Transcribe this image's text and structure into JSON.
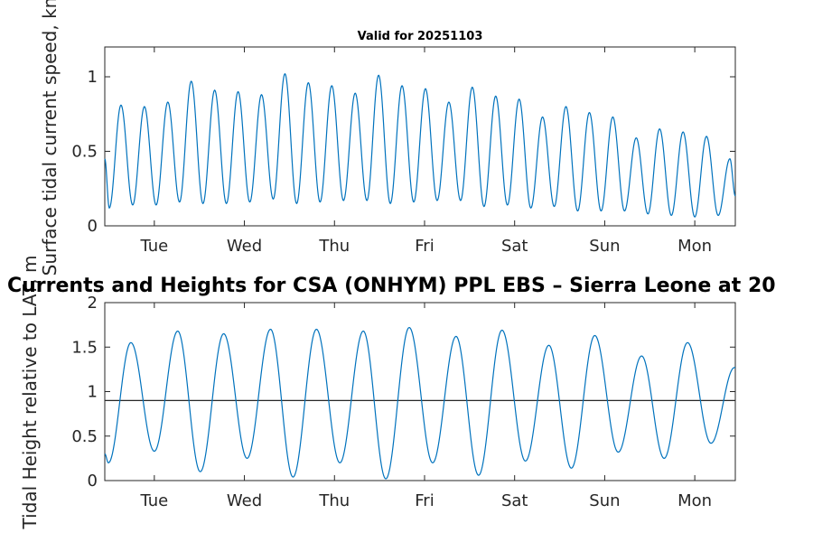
{
  "figure_title": "Currents and Heights for CSA (ONHYM) PPL EBS  – Sierra Leone at 20",
  "chart_data": [
    {
      "type": "line",
      "title": "Valid for 20251103",
      "ylabel": "Surface tidal current speed, kn",
      "ylabel_visible": "Surface tidal current speed, kn",
      "xlim": [
        0,
        7
      ],
      "ylim": [
        0,
        1.2
      ],
      "yticks": [
        0,
        0.5,
        1
      ],
      "ytick_labels": [
        "0",
        "0.5",
        "1"
      ],
      "xtick_positions": [
        0.55,
        1.55,
        2.55,
        3.55,
        4.55,
        5.55,
        6.55
      ],
      "xtick_labels": [
        "Tue",
        "Wed",
        "Thu",
        "Fri",
        "Sat",
        "Sun",
        "Mon"
      ],
      "color": "#0072BD",
      "extrema_t": [
        0,
        0.05,
        0.18,
        0.31,
        0.44,
        0.57,
        0.7,
        0.83,
        0.96,
        1.09,
        1.22,
        1.35,
        1.48,
        1.61,
        1.74,
        1.87,
        2.0,
        2.13,
        2.26,
        2.39,
        2.52,
        2.65,
        2.78,
        2.91,
        3.04,
        3.17,
        3.3,
        3.43,
        3.56,
        3.69,
        3.82,
        3.95,
        4.08,
        4.21,
        4.34,
        4.47,
        4.6,
        4.73,
        4.86,
        4.99,
        5.12,
        5.25,
        5.38,
        5.51,
        5.64,
        5.77,
        5.9,
        6.03,
        6.16,
        6.29,
        6.42,
        6.55,
        6.68,
        6.81,
        6.94,
        7.0
      ],
      "extrema_v": [
        0.45,
        0.12,
        0.81,
        0.14,
        0.8,
        0.14,
        0.83,
        0.16,
        0.97,
        0.15,
        0.91,
        0.15,
        0.9,
        0.16,
        0.88,
        0.18,
        1.02,
        0.15,
        0.96,
        0.16,
        0.94,
        0.17,
        0.89,
        0.17,
        1.01,
        0.15,
        0.94,
        0.16,
        0.92,
        0.17,
        0.83,
        0.17,
        0.93,
        0.13,
        0.87,
        0.14,
        0.85,
        0.12,
        0.73,
        0.13,
        0.8,
        0.1,
        0.76,
        0.1,
        0.73,
        0.1,
        0.59,
        0.08,
        0.65,
        0.07,
        0.63,
        0.06,
        0.6,
        0.07,
        0.45,
        0.2
      ]
    },
    {
      "type": "line",
      "title": "",
      "ylabel": "Tidal Height relative to LAT, m",
      "ylabel_visible": "Tidal Height relative to LAT, m",
      "xlim": [
        0,
        7
      ],
      "ylim": [
        0,
        2
      ],
      "yticks": [
        0,
        0.5,
        1,
        1.5,
        2
      ],
      "ytick_labels": [
        "0",
        "0.5",
        "1",
        "1.5",
        "2"
      ],
      "xtick_positions": [
        0.55,
        1.55,
        2.55,
        3.55,
        4.55,
        5.55,
        6.55
      ],
      "xtick_labels": [
        "Tue",
        "Wed",
        "Thu",
        "Fri",
        "Sat",
        "Sun",
        "Mon"
      ],
      "reference_line": 0.9,
      "color": "#0072BD",
      "extrema_t": [
        0,
        0.04,
        0.29,
        0.55,
        0.81,
        1.06,
        1.32,
        1.58,
        1.84,
        2.09,
        2.35,
        2.61,
        2.87,
        3.12,
        3.38,
        3.64,
        3.9,
        4.15,
        4.41,
        4.67,
        4.93,
        5.18,
        5.44,
        5.7,
        5.96,
        6.21,
        6.47,
        6.73,
        6.99,
        7.0
      ],
      "extrema_v": [
        0.3,
        0.2,
        1.55,
        0.33,
        1.68,
        0.1,
        1.65,
        0.25,
        1.7,
        0.04,
        1.7,
        0.2,
        1.68,
        0.02,
        1.72,
        0.2,
        1.62,
        0.06,
        1.69,
        0.22,
        1.52,
        0.14,
        1.63,
        0.32,
        1.4,
        0.25,
        1.55,
        0.42,
        1.27,
        1.27
      ]
    }
  ]
}
